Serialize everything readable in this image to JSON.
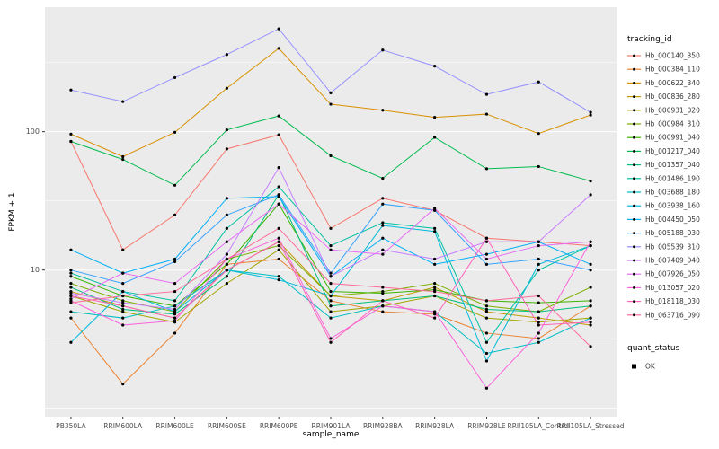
{
  "chart_data": {
    "type": "line",
    "title": "",
    "xlabel": "sample_name",
    "ylabel": "FPKM + 1",
    "y_scale": "log10",
    "y_ticks": [
      10,
      100
    ],
    "grid_major": [
      1,
      10,
      100
    ],
    "grid_minor": [
      3.162,
      31.623,
      316.23
    ],
    "panel_bg": "#EBEBEB",
    "grid_color": "#FFFFFF",
    "point_color": "#000000",
    "tick_label_color": "#4d4d4d",
    "x_categories": [
      "PB350LA",
      "RRIM600LA",
      "RRIM600LE",
      "RRIM600SE",
      "RRIM600PE",
      "RRIM901LA",
      "RRIM928BA",
      "RRIM928LA",
      "RRIM928LE",
      "RRII105LA_Control",
      "RRII105LA_Stressed"
    ],
    "series": [
      {
        "name": "Hb_000140_350",
        "color": "#F8766D",
        "values": [
          85,
          14,
          25,
          75,
          95,
          20,
          33,
          27,
          17,
          16,
          15
        ]
      },
      {
        "name": "Hb_000384_110",
        "color": "#EA8331",
        "values": [
          4.5,
          1.5,
          3.5,
          11,
          12,
          6,
          5,
          4.8,
          3.5,
          3.2,
          5.5
        ]
      },
      {
        "name": "Hb_000622_340",
        "color": "#D89000",
        "values": [
          96,
          66,
          99,
          206,
          400,
          158,
          143,
          127,
          134,
          97,
          132
        ]
      },
      {
        "name": "Hb_000836_280",
        "color": "#C09B00",
        "values": [
          7,
          5.5,
          4.5,
          10,
          16,
          6.5,
          6,
          7.5,
          5,
          4.5,
          4
        ]
      },
      {
        "name": "Hb_000931_020",
        "color": "#A3A500",
        "values": [
          6.5,
          5,
          4.2,
          8,
          14,
          5,
          5.5,
          6.5,
          4.5,
          4.2,
          4.5
        ]
      },
      {
        "name": "Hb_000984_310",
        "color": "#7CAE00",
        "values": [
          8,
          6,
          5,
          12,
          15,
          6.5,
          7,
          8,
          5.5,
          5,
          7.5
        ]
      },
      {
        "name": "Hb_000991_040",
        "color": "#39B600",
        "values": [
          9,
          6.5,
          5.5,
          11,
          30,
          7,
          6.8,
          7.2,
          6,
          5.8,
          6
        ]
      },
      {
        "name": "Hb_001217_040",
        "color": "#00BB4E",
        "values": [
          85,
          63,
          41,
          103,
          130,
          67,
          46,
          91,
          54,
          56,
          44
        ]
      },
      {
        "name": "Hb_001357_040",
        "color": "#00BF7D",
        "values": [
          7.5,
          5.2,
          4.8,
          9,
          35,
          5.5,
          6,
          6.5,
          5.2,
          5,
          5.5
        ]
      },
      {
        "name": "Hb_001486_190",
        "color": "#00C1A3",
        "values": [
          9.5,
          7,
          6,
          20,
          40,
          15,
          22,
          20,
          3,
          10,
          15
        ]
      },
      {
        "name": "Hb_003688_180",
        "color": "#00BFC4",
        "values": [
          5,
          4.5,
          5.5,
          10,
          9,
          4.5,
          5.5,
          5,
          2.5,
          3,
          4.5
        ]
      },
      {
        "name": "Hb_003938_160",
        "color": "#00BBDA",
        "values": [
          3,
          7,
          5,
          10,
          8.5,
          6.5,
          21,
          19,
          2.2,
          11,
          15
        ]
      },
      {
        "name": "Hb_004450_050",
        "color": "#00B0F6",
        "values": [
          14,
          9.5,
          12,
          33,
          34,
          9,
          17,
          11,
          13,
          16,
          11
        ]
      },
      {
        "name": "Hb_005188_030",
        "color": "#35A2FF",
        "values": [
          10,
          8,
          11.5,
          25,
          35,
          9.5,
          30,
          27,
          11,
          12,
          10
        ]
      },
      {
        "name": "Hb_005539_310",
        "color": "#9590FF",
        "values": [
          200,
          165,
          246,
          361,
          554,
          191,
          389,
          298,
          186,
          229,
          138
        ]
      },
      {
        "name": "Hb_007409_040",
        "color": "#C77CFF",
        "values": [
          6.8,
          5.8,
          5.2,
          13,
          55,
          9,
          14,
          12,
          16,
          16,
          35
        ]
      },
      {
        "name": "Hb_007926_050",
        "color": "#E76BF3",
        "values": [
          6.2,
          9.5,
          8,
          16,
          30,
          14,
          13,
          28,
          12,
          15,
          16
        ]
      },
      {
        "name": "Hb_013057_020",
        "color": "#FA62DB",
        "values": [
          6,
          4,
          4.3,
          12,
          17,
          3.2,
          5.5,
          5,
          1.4,
          3.5,
          16
        ]
      },
      {
        "name": "Hb_018118_030",
        "color": "#FF62BC",
        "values": [
          6.5,
          5.5,
          4.5,
          10,
          16,
          3,
          6,
          4.5,
          17,
          4,
          4.2
        ]
      },
      {
        "name": "Hb_063716_090",
        "color": "#FF6A98",
        "values": [
          5.8,
          6.5,
          7,
          12,
          20,
          8,
          7.5,
          7,
          6,
          6.5,
          2.8
        ]
      }
    ],
    "legend": {
      "color_title": "tracking_id",
      "shape_title": "quant_status",
      "shape_items": [
        {
          "label": "OK"
        }
      ]
    }
  }
}
